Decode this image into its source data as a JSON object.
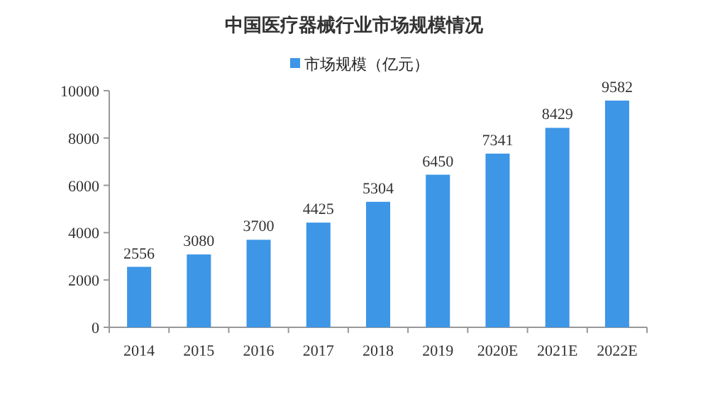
{
  "chart_data": {
    "type": "bar",
    "title": "中国医疗器械行业市场规模情况",
    "categories": [
      "2014",
      "2015",
      "2016",
      "2017",
      "2018",
      "2019",
      "2020E",
      "2021E",
      "2022E"
    ],
    "series": [
      {
        "name": "市场规模（亿元）",
        "color": "#3d96e6",
        "values": [
          2556,
          3080,
          3700,
          4425,
          5304,
          6450,
          7341,
          8429,
          9582
        ]
      }
    ],
    "ylim": [
      0,
      10000
    ],
    "yticks": [
      0,
      2000,
      4000,
      6000,
      8000,
      10000
    ],
    "data_labels": true,
    "legend": "top",
    "grid": false
  }
}
